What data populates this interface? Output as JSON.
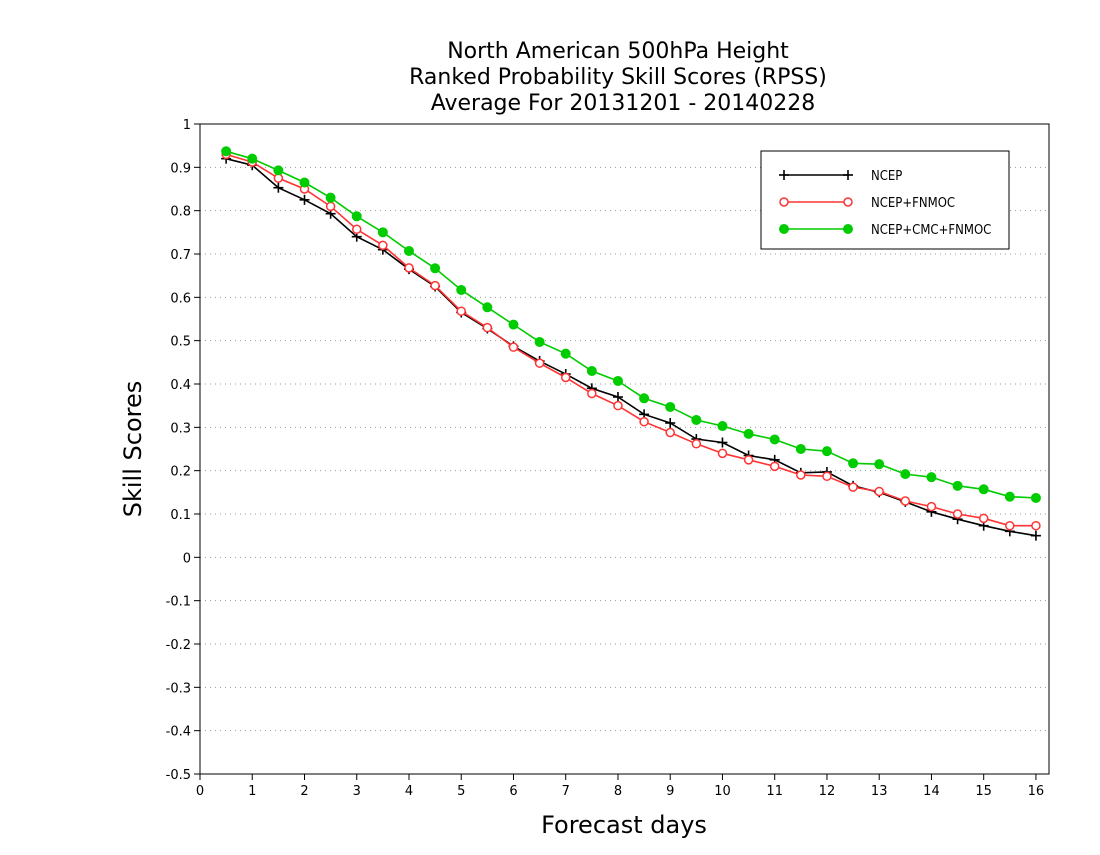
{
  "chart_data": {
    "type": "line",
    "title_lines": [
      "North American 500hPa Height",
      "Ranked Probability Skill Scores (RPSS)",
      "Average For 20131201 - 20140228"
    ],
    "xlabel": "Forecast days",
    "ylabel": "Skill Scores",
    "xlim": [
      0,
      16.25
    ],
    "ylim": [
      -0.5,
      1
    ],
    "x_ticks": [
      0,
      1,
      2,
      3,
      4,
      5,
      6,
      7,
      8,
      9,
      10,
      11,
      12,
      13,
      14,
      15,
      16
    ],
    "y_ticks": [
      -0.5,
      -0.4,
      -0.3,
      -0.2,
      -0.1,
      0,
      0.1,
      0.2,
      0.3,
      0.4,
      0.5,
      0.6,
      0.7,
      0.8,
      0.9,
      1
    ],
    "y_tick_labels": [
      "-0.5",
      "-0.4",
      "-0.3",
      "-0.2",
      "-0.1",
      "0",
      "0.1",
      "0.2",
      "0.3",
      "0.4",
      "0.5",
      "0.6",
      "0.7",
      "0.8",
      "0.9",
      "1"
    ],
    "grid": "horizontal dotted",
    "legend_position": "top-right",
    "x": [
      0.5,
      1,
      1.5,
      2,
      2.5,
      3,
      3.5,
      4,
      4.5,
      5,
      5.5,
      6,
      6.5,
      7,
      7.5,
      8,
      8.5,
      9,
      9.5,
      10,
      10.5,
      11,
      11.5,
      12,
      12.5,
      13,
      13.5,
      14,
      14.5,
      15,
      15.5,
      16
    ],
    "series": [
      {
        "name": "NCEP",
        "color": "#000000",
        "marker": "plus",
        "values": [
          0.92,
          0.905,
          0.853,
          0.825,
          0.793,
          0.74,
          0.71,
          0.665,
          0.625,
          0.565,
          0.528,
          0.487,
          0.453,
          0.423,
          0.39,
          0.37,
          0.33,
          0.31,
          0.273,
          0.265,
          0.235,
          0.225,
          0.195,
          0.197,
          0.165,
          0.15,
          0.128,
          0.105,
          0.088,
          0.073,
          0.06,
          0.05
        ]
      },
      {
        "name": "NCEP+FNMOC",
        "color": "#ff3333",
        "marker": "open-circle",
        "values": [
          0.93,
          0.912,
          0.875,
          0.85,
          0.81,
          0.757,
          0.72,
          0.668,
          0.627,
          0.568,
          0.53,
          0.485,
          0.448,
          0.415,
          0.378,
          0.35,
          0.313,
          0.288,
          0.262,
          0.24,
          0.225,
          0.21,
          0.19,
          0.187,
          0.162,
          0.152,
          0.13,
          0.117,
          0.1,
          0.09,
          0.073,
          0.073
        ]
      },
      {
        "name": "NCEP+CMC+FNMOC",
        "color": "#00cc00",
        "marker": "filled-circle",
        "values": [
          0.937,
          0.92,
          0.893,
          0.865,
          0.83,
          0.787,
          0.75,
          0.707,
          0.667,
          0.617,
          0.577,
          0.537,
          0.497,
          0.47,
          0.43,
          0.407,
          0.367,
          0.347,
          0.317,
          0.303,
          0.285,
          0.272,
          0.25,
          0.245,
          0.217,
          0.215,
          0.192,
          0.185,
          0.165,
          0.157,
          0.14,
          0.137
        ]
      }
    ]
  }
}
